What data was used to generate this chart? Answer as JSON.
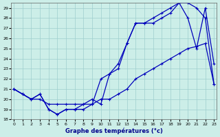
{
  "title": "Graphe des températures (°c)",
  "bg_color": "#cceee8",
  "grid_color": "#9ecece",
  "line_color": "#0000bb",
  "ylim": [
    18,
    29.5
  ],
  "xlim": [
    -0.3,
    23.3
  ],
  "yticks": [
    18,
    19,
    20,
    21,
    22,
    23,
    24,
    25,
    26,
    27,
    28,
    29
  ],
  "xticks": [
    0,
    1,
    2,
    3,
    4,
    5,
    6,
    7,
    8,
    9,
    10,
    11,
    12,
    13,
    14,
    15,
    16,
    17,
    18,
    19,
    20,
    21,
    22,
    23
  ],
  "line1_x": [
    0,
    1,
    2,
    3,
    4,
    5,
    6,
    7,
    8,
    9,
    10,
    11,
    12,
    13,
    14,
    15,
    16,
    17,
    18,
    19,
    20,
    21,
    22,
    23
  ],
  "line1_y": [
    21.0,
    20.5,
    20.0,
    20.5,
    19.0,
    18.5,
    19.0,
    19.0,
    19.0,
    19.5,
    20.0,
    20.0,
    20.5,
    21.0,
    22.0,
    22.5,
    23.0,
    23.5,
    24.0,
    24.5,
    25.0,
    25.2,
    25.5,
    21.5
  ],
  "line2_x": [
    0,
    1,
    2,
    3,
    4,
    5,
    6,
    7,
    8,
    9,
    10,
    11,
    12,
    13,
    14,
    15,
    16,
    17,
    18,
    19,
    20,
    21,
    22,
    23
  ],
  "line2_y": [
    21.0,
    20.5,
    20.0,
    20.0,
    19.5,
    19.5,
    19.5,
    19.5,
    19.5,
    19.5,
    22.0,
    22.5,
    23.0,
    25.5,
    27.5,
    27.5,
    28.0,
    28.5,
    29.0,
    29.5,
    28.0,
    25.0,
    29.0,
    23.5
  ],
  "line3_x": [
    0,
    1,
    2,
    3,
    4,
    5,
    6,
    7,
    8,
    9,
    10,
    11,
    12,
    13,
    14,
    15,
    16,
    17,
    18,
    19,
    20,
    21,
    22,
    23
  ],
  "line3_y": [
    21.0,
    20.5,
    20.0,
    20.5,
    19.0,
    18.5,
    19.0,
    19.0,
    19.5,
    20.0,
    19.5,
    22.5,
    23.5,
    25.5,
    27.5,
    27.5,
    27.5,
    28.0,
    28.5,
    29.5,
    29.5,
    29.0,
    28.0,
    21.5
  ]
}
